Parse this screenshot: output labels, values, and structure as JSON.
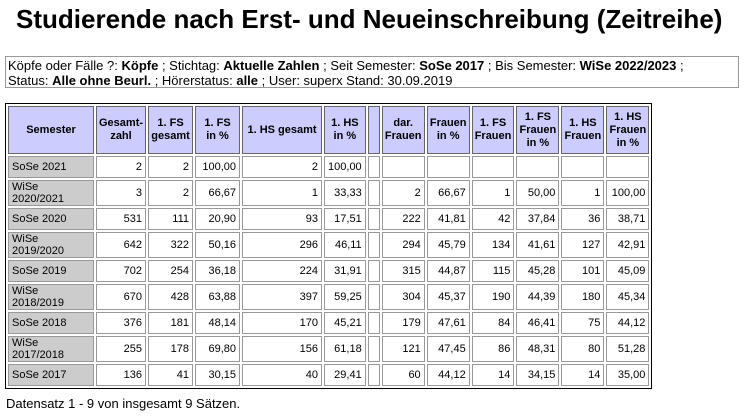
{
  "title": "Studierende nach Erst- und Neueinschreibung (Zeitreihe)",
  "filters": {
    "koepfe_label": "Köpfe oder Fälle ?:",
    "koepfe_value": "Köpfe",
    "stichtag_label": "; Stichtag:",
    "stichtag_value": "Aktuelle Zahlen",
    "seit_label": "; Seit Semester:",
    "seit_value": "SoSe 2017",
    "bis_label": "; Bis Semester:",
    "bis_value": "WiSe 2022/2023",
    "bis_end": ";",
    "status_label": "Status:",
    "status_value": "Alle ohne Beurl.",
    "hoerer_label": "; Hörerstatus:",
    "hoerer_value": "alle",
    "user_text": "; User: superx  Stand: 30.09.2019"
  },
  "table": {
    "headers": [
      "Semester",
      "Gesamt-zahl",
      "1. FS gesamt",
      "1. FS in %",
      "1. HS gesamt",
      "1. HS in %",
      "",
      "dar. Frauen",
      "Frauen in %",
      "1. FS Frauen",
      "1. FS Frauen in %",
      "1. HS Frauen",
      "1. HS Frauen in %"
    ],
    "rows": [
      [
        "SoSe 2021",
        "2",
        "2",
        "100,00",
        "2",
        "100,00",
        "",
        "",
        "",
        "",
        "",
        "",
        ""
      ],
      [
        "WiSe 2020/2021",
        "3",
        "2",
        "66,67",
        "1",
        "33,33",
        "",
        "2",
        "66,67",
        "1",
        "50,00",
        "1",
        "100,00"
      ],
      [
        "SoSe 2020",
        "531",
        "111",
        "20,90",
        "93",
        "17,51",
        "",
        "222",
        "41,81",
        "42",
        "37,84",
        "36",
        "38,71"
      ],
      [
        "WiSe 2019/2020",
        "642",
        "322",
        "50,16",
        "296",
        "46,11",
        "",
        "294",
        "45,79",
        "134",
        "41,61",
        "127",
        "42,91"
      ],
      [
        "SoSe 2019",
        "702",
        "254",
        "36,18",
        "224",
        "31,91",
        "",
        "315",
        "44,87",
        "115",
        "45,28",
        "101",
        "45,09"
      ],
      [
        "WiSe 2018/2019",
        "670",
        "428",
        "63,88",
        "397",
        "59,25",
        "",
        "304",
        "45,37",
        "190",
        "44,39",
        "180",
        "45,34"
      ],
      [
        "SoSe 2018",
        "376",
        "181",
        "48,14",
        "170",
        "45,21",
        "",
        "179",
        "47,61",
        "84",
        "46,41",
        "75",
        "44,12"
      ],
      [
        "WiSe 2017/2018",
        "255",
        "178",
        "69,80",
        "156",
        "61,18",
        "",
        "121",
        "47,45",
        "86",
        "48,31",
        "80",
        "51,28"
      ],
      [
        "SoSe 2017",
        "136",
        "41",
        "30,15",
        "40",
        "29,41",
        "",
        "60",
        "44,12",
        "14",
        "34,15",
        "14",
        "35,00"
      ]
    ]
  },
  "footer": "Datensatz 1 - 9 von insgesamt 9 Sätzen."
}
